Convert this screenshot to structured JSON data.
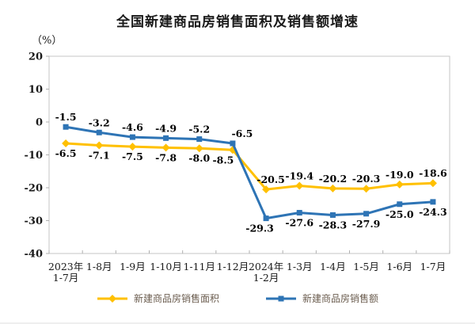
{
  "page": {
    "title": "全国新建商品房销售面积及销售额增速",
    "unit_label": "（%）"
  },
  "chart_data": {
    "type": "line",
    "title": "全国新建商品房销售面积及销售额增速",
    "ylabel": "（%）",
    "ylim": [
      -40,
      20
    ],
    "yticks": [
      20,
      10,
      0,
      -10,
      -20,
      -30,
      -40
    ],
    "grid": false,
    "legend_position": "bottom",
    "categories": [
      "2023年\n1-7月",
      "1-8月",
      "1-9月",
      "1-10月",
      "1-11月",
      "1-12月",
      "2024年\n1-2月",
      "1-3月",
      "1-4月",
      "1-5月",
      "1-6月",
      "1-7月"
    ],
    "series": [
      {
        "name": "新建商品房销售面积",
        "color": "#FFC000",
        "marker": "diamond",
        "values": [
          -6.5,
          -7.1,
          -7.5,
          -7.8,
          -8.0,
          -8.5,
          -20.5,
          -19.4,
          -20.2,
          -20.3,
          -19.0,
          -18.6
        ],
        "labels": [
          "-6.5",
          "-7.1",
          "-7.5",
          "-7.8",
          "-8.0",
          "-8.5",
          "-20.5",
          "-19.4",
          "-20.2",
          "-20.3",
          "-19.0",
          "-18.6"
        ],
        "label_placement": [
          "below",
          "below",
          "below",
          "below",
          "below",
          "below",
          "above",
          "above",
          "above",
          "above",
          "above",
          "above"
        ]
      },
      {
        "name": "新建商品房销售额",
        "color": "#2E74B5",
        "marker": "square",
        "values": [
          -1.5,
          -3.2,
          -4.6,
          -4.9,
          -5.2,
          -6.5,
          -29.3,
          -27.6,
          -28.3,
          -27.9,
          -25.0,
          -24.3
        ],
        "labels": [
          "-1.5",
          "-3.2",
          "-4.6",
          "-4.9",
          "-5.2",
          "-6.5",
          "-29.3",
          "-27.6",
          "-28.3",
          "-27.9",
          "-25.0",
          "-24.3"
        ],
        "label_placement": [
          "above",
          "above",
          "above",
          "above",
          "above",
          "above",
          "below",
          "below",
          "below",
          "below",
          "below",
          "below"
        ]
      }
    ],
    "colors": {
      "axis": "#c6c6c6",
      "tick": "#b0b0b0",
      "data_label_text": "#000000",
      "axis_label_text": "#1a1a1a",
      "legend_text": "#6b5d4f",
      "title_text": "#1a1a1a"
    }
  }
}
